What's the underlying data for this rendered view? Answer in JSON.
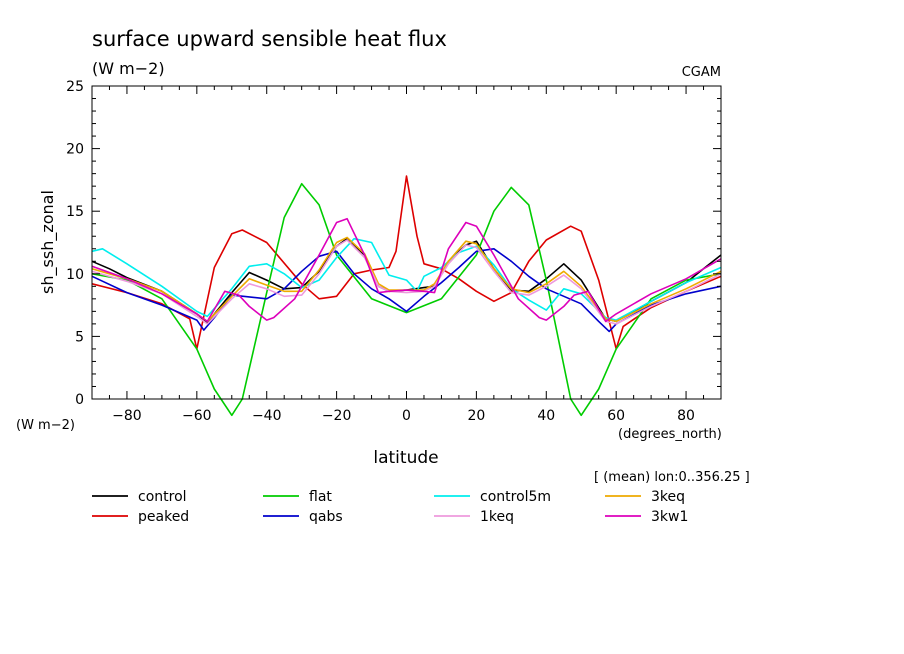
{
  "chart_data": {
    "type": "line",
    "title": "surface upward sensible heat flux",
    "units": "(W m−2)",
    "source": "CGAM",
    "ylabel": "sh_ssh_zonal",
    "y_units_label": "(W m−2)",
    "xlabel": "latitude",
    "x_units_label": "(degrees_north)",
    "subset_note": "[ (mean) lon:0..356.25 ]",
    "xlim": [
      -90,
      90
    ],
    "ylim": [
      0,
      25
    ],
    "x_ticks": [
      -80,
      -60,
      -40,
      -20,
      0,
      20,
      40,
      60,
      80
    ],
    "y_ticks": [
      0,
      5,
      10,
      15,
      20,
      25
    ],
    "x_tick_labels": [
      "−80",
      "−60",
      "−40",
      "−20",
      "0",
      "20",
      "40",
      "60",
      "80"
    ],
    "y_tick_labels": [
      "0",
      "5",
      "10",
      "15",
      "20",
      "25"
    ],
    "grid": false,
    "legend_position": "bottom",
    "series": [
      {
        "name": "control",
        "color": "#000000",
        "x": [
          -90,
          -85,
          -80,
          -70,
          -60,
          -57,
          -50,
          -45,
          -40,
          -35,
          -30,
          -25,
          -20,
          -17,
          -12,
          -8,
          -5,
          0,
          5,
          8,
          12,
          17,
          20,
          25,
          30,
          35,
          40,
          45,
          50,
          57,
          60,
          70,
          80,
          85,
          90
        ],
        "y": [
          11,
          10.4,
          9.7,
          8.6,
          6.8,
          6.1,
          8.5,
          10.1,
          9.5,
          8.8,
          8.9,
          10.2,
          12.2,
          12.8,
          11.5,
          9,
          8.6,
          8.7,
          8.9,
          9,
          11,
          12.3,
          12.6,
          10.4,
          8.7,
          8.6,
          9.6,
          10.8,
          9.5,
          6.4,
          6.2,
          7.8,
          9.3,
          10.4,
          11.5
        ]
      },
      {
        "name": "peaked",
        "color": "#dd0000",
        "x": [
          -90,
          -80,
          -70,
          -62,
          -60,
          -55,
          -50,
          -47,
          -40,
          -30,
          -25,
          -20,
          -15,
          -10,
          -5,
          -3,
          0,
          3,
          5,
          10,
          15,
          20,
          25,
          30,
          35,
          40,
          47,
          50,
          55,
          60,
          62,
          70,
          80,
          90
        ],
        "y": [
          9.2,
          8.5,
          7.6,
          6.4,
          4,
          10.5,
          13.2,
          13.5,
          12.5,
          9.2,
          8,
          8.2,
          10,
          10.3,
          10.5,
          11.8,
          17.8,
          13,
          10.8,
          10.4,
          9.6,
          8.6,
          7.8,
          8.5,
          11,
          12.7,
          13.8,
          13.4,
          9.5,
          4,
          5.8,
          7.3,
          8.6,
          9.8
        ]
      },
      {
        "name": "flat",
        "color": "#00cc00",
        "x": [
          -90,
          -80,
          -70,
          -60,
          -55,
          -50,
          -47,
          -40,
          -35,
          -30,
          -25,
          -20,
          -10,
          0,
          10,
          20,
          25,
          30,
          35,
          40,
          47,
          50,
          55,
          60,
          70,
          80,
          90
        ],
        "y": [
          10,
          9.5,
          8,
          4,
          0.8,
          -1.3,
          0,
          8.5,
          14.5,
          17.2,
          15.5,
          11.5,
          8,
          6.9,
          8,
          11.5,
          15,
          16.9,
          15.5,
          9.5,
          0,
          -1.3,
          0.8,
          4,
          8,
          9.5,
          10
        ]
      },
      {
        "name": "qabs",
        "color": "#0000cc",
        "x": [
          -90,
          -80,
          -70,
          -60,
          -58,
          -55,
          -50,
          -40,
          -35,
          -30,
          -25,
          -20,
          -15,
          -10,
          -5,
          0,
          5,
          10,
          15,
          20,
          25,
          30,
          35,
          40,
          45,
          50,
          55,
          58,
          60,
          70,
          80,
          90
        ],
        "y": [
          9.8,
          8.5,
          7.5,
          6.3,
          5.5,
          6.5,
          8.3,
          8,
          8.8,
          10.2,
          11.4,
          11.8,
          10,
          8.8,
          8,
          7,
          8.2,
          9.3,
          10.5,
          11.8,
          12,
          11,
          9.8,
          8.8,
          8.2,
          7.6,
          6.2,
          5.4,
          6,
          7.5,
          8.4,
          9
        ]
      },
      {
        "name": "control5m",
        "color": "#00eeee",
        "x": [
          -90,
          -87,
          -80,
          -70,
          -60,
          -57,
          -50,
          -45,
          -40,
          -35,
          -30,
          -25,
          -20,
          -15,
          -10,
          -5,
          0,
          3,
          5,
          10,
          15,
          20,
          25,
          30,
          35,
          40,
          45,
          50,
          57,
          60,
          70,
          80,
          90
        ],
        "y": [
          11.8,
          12,
          10.8,
          9,
          7,
          6.6,
          8.8,
          10.6,
          10.8,
          10,
          8.9,
          9.5,
          11.3,
          12.8,
          12.5,
          9.9,
          9.5,
          8.6,
          9.8,
          10.5,
          11.7,
          12.2,
          10.7,
          8.8,
          7.9,
          7.1,
          8.8,
          8.4,
          6.5,
          6.3,
          7.8,
          9.3,
          10.5
        ]
      },
      {
        "name": "3keq",
        "color": "#eeaa00",
        "x": [
          -90,
          -80,
          -70,
          -60,
          -57,
          -50,
          -45,
          -40,
          -35,
          -30,
          -25,
          -20,
          -17,
          -12,
          -8,
          -5,
          0,
          5,
          8,
          12,
          17,
          20,
          25,
          30,
          35,
          40,
          45,
          50,
          57,
          60,
          70,
          80,
          90
        ],
        "y": [
          10.4,
          9.6,
          8.6,
          6.8,
          6.2,
          8.2,
          9.6,
          9.1,
          8.6,
          8.6,
          10.3,
          12.5,
          12.9,
          11.6,
          9.2,
          8.7,
          8.7,
          8.7,
          9.2,
          11,
          12.6,
          12.4,
          10.4,
          8.8,
          8.5,
          9.2,
          10.2,
          9,
          6.4,
          6.2,
          7.6,
          8.8,
          10.2
        ]
      },
      {
        "name": "1keq",
        "color": "#ee99dd",
        "x": [
          -90,
          -80,
          -70,
          -60,
          -57,
          -50,
          -45,
          -40,
          -35,
          -30,
          -25,
          -20,
          -17,
          -12,
          -8,
          -5,
          0,
          5,
          8,
          12,
          17,
          20,
          25,
          30,
          35,
          40,
          45,
          50,
          57,
          60,
          70,
          80,
          90
        ],
        "y": [
          10.2,
          9.4,
          8.4,
          6.6,
          6,
          8,
          9.2,
          8.8,
          8.2,
          8.3,
          10,
          12.2,
          12.7,
          11.3,
          9,
          8.6,
          8.5,
          8.6,
          9,
          10.8,
          12.3,
          12.1,
          10.2,
          8.5,
          8.3,
          9,
          9.9,
          8.8,
          6.2,
          6,
          7.4,
          8.6,
          10
        ]
      },
      {
        "name": "3kw1",
        "color": "#dd00bb",
        "x": [
          -90,
          -80,
          -70,
          -60,
          -57,
          -52,
          -48,
          -45,
          -40,
          -38,
          -32,
          -25,
          -20,
          -17,
          -12,
          -8,
          -5,
          0,
          5,
          8,
          12,
          17,
          20,
          25,
          32,
          38,
          40,
          45,
          48,
          52,
          57,
          60,
          70,
          80,
          90
        ],
        "y": [
          10.6,
          9.6,
          8.4,
          6.8,
          6.2,
          8.6,
          8.3,
          7.4,
          6.3,
          6.5,
          8,
          11.5,
          14.1,
          14.4,
          11.5,
          8.5,
          8.6,
          8.7,
          8.6,
          8.5,
          12,
          14.1,
          13.8,
          11.5,
          8,
          6.5,
          6.3,
          7.4,
          8.3,
          8.6,
          6.2,
          6.8,
          8.4,
          9.6,
          11.2
        ]
      }
    ]
  }
}
